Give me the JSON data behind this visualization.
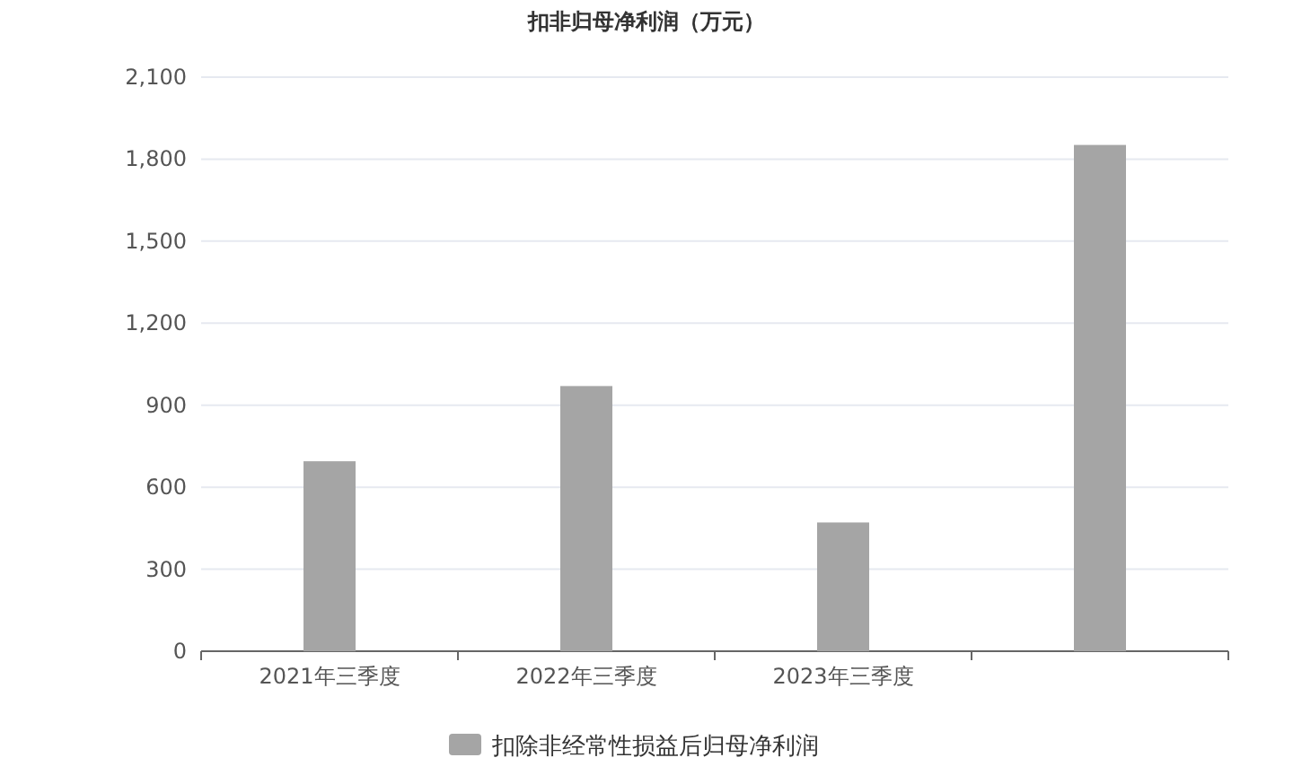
{
  "chart_data": {
    "type": "bar",
    "title": "扣非归母净利润（万元）",
    "categories": [
      "2021年三季度",
      "2022年三季度",
      "2023年三季度",
      null
    ],
    "series": [
      {
        "name": "扣除非经常性损益后归母净利润",
        "color": "#a5a5a5",
        "values": [
          695,
          970,
          471,
          1852
        ]
      }
    ],
    "ylim": [
      0,
      2100
    ],
    "yticks": [
      {
        "value": 0,
        "label": "0"
      },
      {
        "value": 300,
        "label": "300"
      },
      {
        "value": 600,
        "label": "600"
      },
      {
        "value": 900,
        "label": "900"
      },
      {
        "value": 1200,
        "label": "1,200"
      },
      {
        "value": 1500,
        "label": "1,500"
      },
      {
        "value": 1800,
        "label": "1,800"
      },
      {
        "value": 2100,
        "label": "2,100"
      }
    ],
    "grid": "y",
    "legend": "bottom"
  }
}
